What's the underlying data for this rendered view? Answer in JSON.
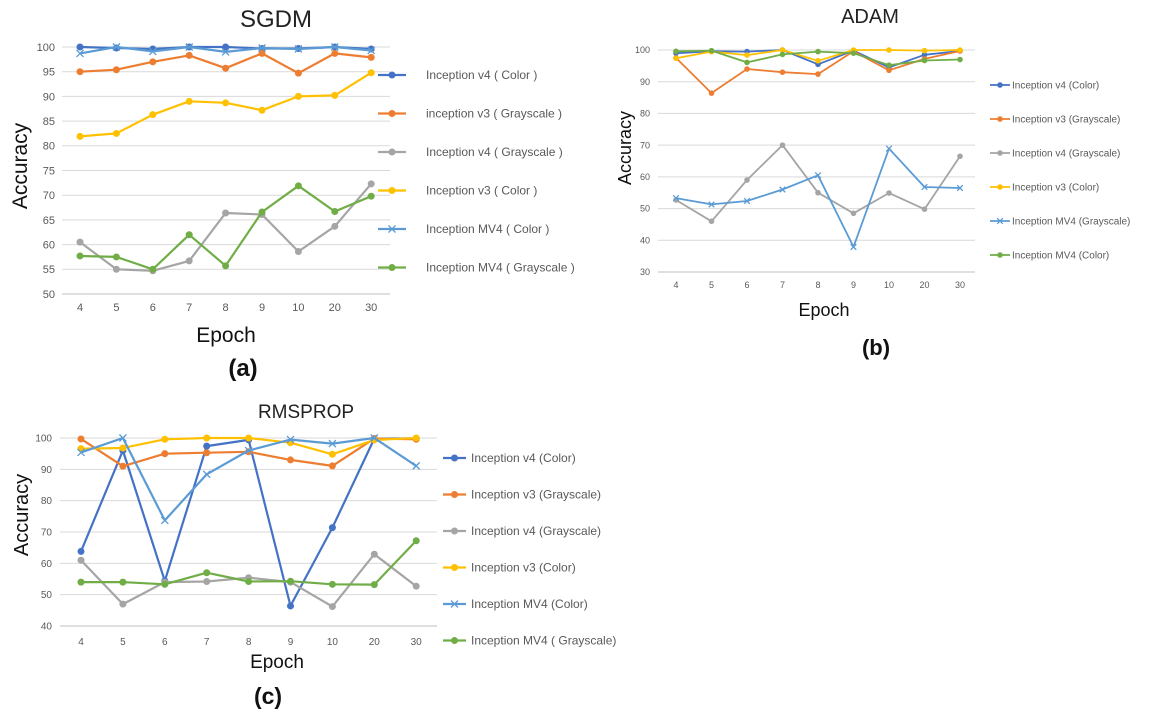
{
  "colors": {
    "blue": "#4472C4",
    "orange": "#ED7D31",
    "gray": "#A5A5A5",
    "yellow": "#FFC000",
    "lightblue": "#5B9BD5",
    "green": "#70AD47",
    "grid": "#D9D9D9"
  },
  "chart_data": [
    {
      "type": "line",
      "panel_label": "(a)",
      "title": "SGDM",
      "xlabel": "Epoch",
      "ylabel": "Accuracy",
      "categories": [
        "4",
        "5",
        "6",
        "7",
        "8",
        "9",
        "10",
        "20",
        "30"
      ],
      "ylim": [
        50,
        100
      ],
      "yticks": [
        50,
        55,
        60,
        65,
        70,
        75,
        80,
        85,
        90,
        95,
        100
      ],
      "grid": true,
      "legend_position": "right",
      "series": [
        {
          "name": "Inception v4 ( Color )",
          "color": "blue",
          "marker": "circle",
          "values": [
            100,
            99.8,
            99.6,
            100,
            100,
            99.7,
            99.7,
            100,
            99.6
          ]
        },
        {
          "name": "inception v3 ( Grayscale )",
          "color": "orange",
          "marker": "circle",
          "values": [
            95,
            95.4,
            97,
            98.3,
            95.7,
            98.7,
            94.7,
            98.7,
            97.9
          ]
        },
        {
          "name": "Inception v4 ( Grayscale )",
          "color": "gray",
          "marker": "circle",
          "values": [
            60.5,
            55,
            54.7,
            56.7,
            66.4,
            66.1,
            58.6,
            63.7,
            72.3
          ]
        },
        {
          "name": "Inception v3 ( Color )",
          "color": "yellow",
          "marker": "circle",
          "values": [
            81.9,
            82.5,
            86.3,
            89,
            88.7,
            87.2,
            90,
            90.2,
            94.8
          ]
        },
        {
          "name": "Inception MV4 ( Color )",
          "color": "lightblue",
          "marker": "x",
          "values": [
            98.7,
            100,
            99.1,
            100,
            99,
            99.8,
            99.6,
            100,
            99.3
          ]
        },
        {
          "name": "Inception MV4 ( Grayscale )",
          "color": "green",
          "marker": "circle",
          "values": [
            57.7,
            57.5,
            55,
            62,
            55.7,
            66.6,
            71.9,
            66.7,
            69.8
          ]
        }
      ]
    },
    {
      "type": "line",
      "panel_label": "(b)",
      "title": "ADAM",
      "xlabel": "Epoch",
      "ylabel": "Accuracy",
      "categories": [
        "4",
        "5",
        "6",
        "7",
        "8",
        "9",
        "10",
        "20",
        "30"
      ],
      "ylim": [
        30,
        100
      ],
      "yticks": [
        30,
        40,
        50,
        60,
        70,
        80,
        90,
        100
      ],
      "grid": true,
      "legend_position": "right",
      "series": [
        {
          "name": "Inception v4 (Color)",
          "color": "blue",
          "marker": "circle",
          "values": [
            99,
            99.6,
            99.5,
            100,
            95.5,
            99.8,
            94.5,
            98.5,
            99.7
          ]
        },
        {
          "name": "Inception v3 (Grayscale)",
          "color": "orange",
          "marker": "circle",
          "values": [
            97.5,
            86.4,
            94,
            93,
            92.4,
            99.6,
            93.6,
            97.2,
            99.7
          ]
        },
        {
          "name": "Inception v4 (Grayscale)",
          "color": "gray",
          "marker": "circle",
          "values": [
            52.7,
            46,
            59,
            70,
            55,
            48.5,
            54.9,
            49.8,
            66.5
          ]
        },
        {
          "name": "Inception v3 (Color)",
          "color": "yellow",
          "marker": "circle",
          "values": [
            97.4,
            99.5,
            98.4,
            100,
            96.6,
            100,
            100,
            99.8,
            100
          ]
        },
        {
          "name": "Inception MV4 (Grayscale)",
          "color": "lightblue",
          "marker": "x",
          "values": [
            53.3,
            51.3,
            52.4,
            56,
            60.5,
            37.9,
            68.9,
            56.8,
            56.5
          ]
        },
        {
          "name": "Inception MV4 (Color)",
          "color": "green",
          "marker": "circle",
          "values": [
            99.6,
            99.8,
            96.1,
            98.6,
            99.5,
            99,
            95.2,
            96.7,
            97
          ]
        }
      ]
    },
    {
      "type": "line",
      "panel_label": "(c)",
      "title": "RMSPROP",
      "xlabel": "Epoch",
      "ylabel": "Accuracy",
      "categories": [
        "4",
        "5",
        "6",
        "7",
        "8",
        "9",
        "10",
        "20",
        "30"
      ],
      "ylim": [
        40,
        100
      ],
      "yticks": [
        40,
        50,
        60,
        70,
        80,
        90,
        100
      ],
      "grid": true,
      "legend_position": "right",
      "series": [
        {
          "name": "Inception v4 (Color)",
          "color": "blue",
          "marker": "circle",
          "values": [
            63.8,
            96,
            54.4,
            97.4,
            99.4,
            46.4,
            71.4,
            99.8,
            99.9
          ]
        },
        {
          "name": "Inception v3 (Grayscale)",
          "color": "orange",
          "marker": "circle",
          "values": [
            99.7,
            91,
            95,
            95.3,
            95.6,
            93,
            91.1,
            99.8,
            99.6
          ]
        },
        {
          "name": "Inception v4 (Grayscale)",
          "color": "gray",
          "marker": "circle",
          "values": [
            61,
            47,
            54,
            54.2,
            55.4,
            54,
            46.2,
            62.9,
            52.7
          ]
        },
        {
          "name": "Inception v3 (Color)",
          "color": "yellow",
          "marker": "circle",
          "values": [
            96.6,
            96.8,
            99.6,
            100,
            100,
            98.5,
            94.8,
            99.4,
            100
          ]
        },
        {
          "name": "Inception MV4 (Color)",
          "color": "lightblue",
          "marker": "x",
          "values": [
            95.4,
            100,
            73.7,
            88.4,
            96,
            99.5,
            98.2,
            100,
            91.1
          ]
        },
        {
          "name": "Inception MV4 ( Grayscale)",
          "color": "green",
          "marker": "circle",
          "values": [
            54,
            54,
            53.3,
            57,
            54.2,
            54.3,
            53.3,
            53.2,
            67.2
          ]
        }
      ]
    }
  ]
}
